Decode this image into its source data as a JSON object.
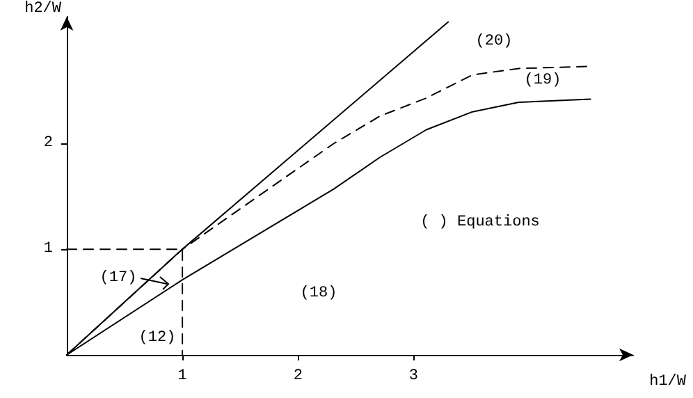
{
  "chart_data": {
    "type": "line",
    "xlabel": "h1/W",
    "ylabel": "h2/W",
    "xlim": [
      0,
      4.9
    ],
    "ylim": [
      0,
      3.2
    ],
    "xticks": [
      1,
      2,
      3
    ],
    "yticks": [
      1,
      2
    ],
    "grid": false,
    "marker": "none",
    "series": [
      {
        "color": "#000000",
        "line_style": "solid",
        "x": [
          0,
          1,
          3.3
        ],
        "values": [
          0,
          1,
          3.15
        ]
      },
      {
        "color": "#000000",
        "line_style": "dashed",
        "x": [
          0,
          1,
          2.31,
          2.71,
          3.11,
          3.51,
          3.91,
          4.53
        ],
        "values": [
          0,
          1,
          2.0,
          2.26,
          2.43,
          2.65,
          2.71,
          2.73
        ]
      },
      {
        "color": "#000000",
        "line_style": "solid",
        "x": [
          0,
          1,
          2.31,
          2.71,
          3.11,
          3.51,
          3.91,
          4.53
        ],
        "values": [
          0,
          0.71,
          1.57,
          1.87,
          2.13,
          2.3,
          2.39,
          2.42
        ]
      },
      {
        "color": "#000000",
        "line_style": "dashed",
        "x": [
          0,
          1,
          1
        ],
        "values": [
          1,
          1,
          0
        ]
      }
    ],
    "annotations": [
      "(20)",
      "(19)",
      "(18)",
      "(17)",
      "(12)",
      "( ) Equations"
    ]
  }
}
